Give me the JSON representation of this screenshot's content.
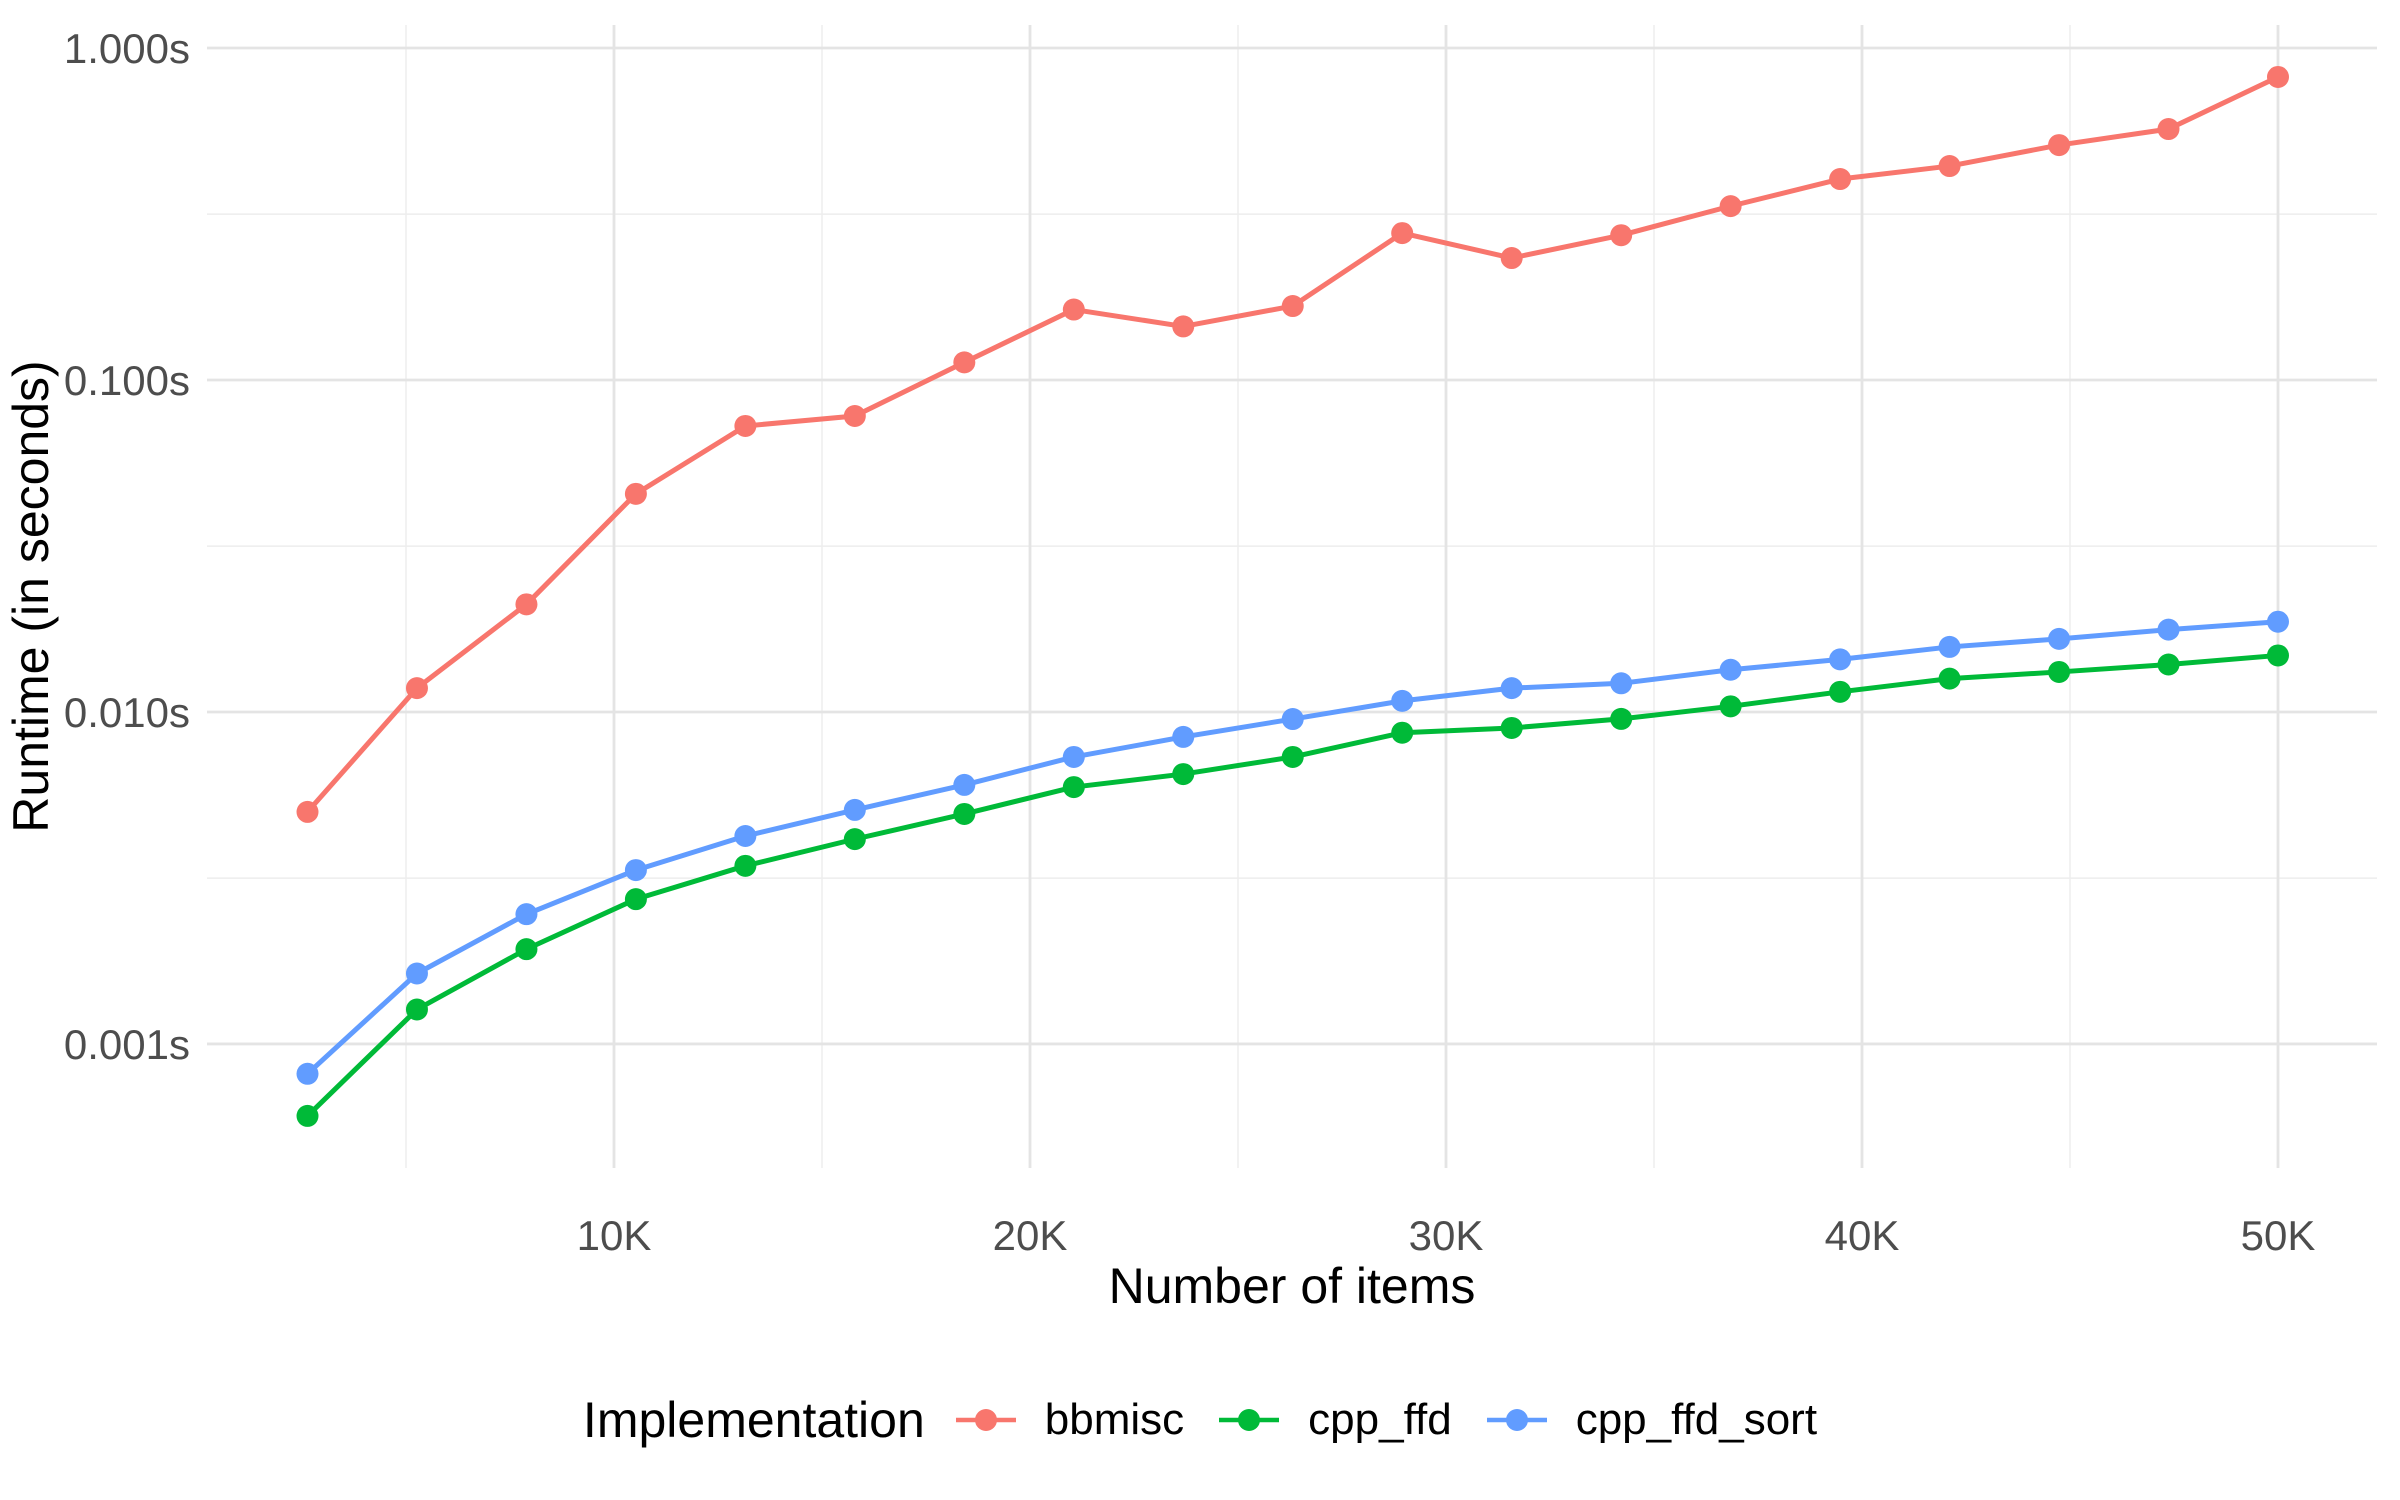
{
  "chart_data": {
    "type": "line",
    "title": "",
    "xlabel": "Number of items",
    "ylabel": "Runtime (in seconds)",
    "legend_title": "Implementation",
    "legend_position": "bottom",
    "x_scale": "linear",
    "y_scale": "log10",
    "grid": true,
    "xlim": [
      216,
      52380
    ],
    "ylim": [
      0.000423,
      1.173
    ],
    "x_ticks": [
      {
        "value": 10000,
        "label": "10K"
      },
      {
        "value": 20000,
        "label": "20K"
      },
      {
        "value": 30000,
        "label": "30K"
      },
      {
        "value": 40000,
        "label": "40K"
      },
      {
        "value": 50000,
        "label": "50K"
      }
    ],
    "x_minor_ticks": [
      5000,
      15000,
      25000,
      35000,
      45000
    ],
    "y_ticks": [
      {
        "value": 1.0,
        "label": "1.000s"
      },
      {
        "value": 0.1,
        "label": "0.100s"
      },
      {
        "value": 0.01,
        "label": "0.010s"
      },
      {
        "value": 0.001,
        "label": "0.001s"
      }
    ],
    "y_minor_ticks": [
      0.316,
      0.0316,
      0.00316
    ],
    "x": [
      2632,
      5263,
      7895,
      10526,
      13158,
      15789,
      18421,
      21053,
      23684,
      26316,
      28947,
      31579,
      34211,
      36842,
      39474,
      42105,
      44737,
      47368,
      50000
    ],
    "series": [
      {
        "name": "bbmisc",
        "color": "#F8766D",
        "values": [
          0.005,
          0.0118,
          0.0211,
          0.0454,
          0.0727,
          0.0779,
          0.113,
          0.163,
          0.145,
          0.167,
          0.277,
          0.233,
          0.273,
          0.334,
          0.403,
          0.441,
          0.51,
          0.57,
          0.818
        ]
      },
      {
        "name": "cpp_ffd",
        "color": "#00BA38",
        "values": [
          0.000607,
          0.00127,
          0.00193,
          0.00273,
          0.00344,
          0.00414,
          0.00493,
          0.00594,
          0.0065,
          0.00732,
          0.00866,
          0.00895,
          0.00953,
          0.0104,
          0.0115,
          0.0126,
          0.0132,
          0.0139,
          0.0148
        ]
      },
      {
        "name": "cpp_ffd_sort",
        "color": "#619CFF",
        "values": [
          0.000813,
          0.00163,
          0.00246,
          0.00334,
          0.00423,
          0.00507,
          0.00603,
          0.00732,
          0.00841,
          0.00952,
          0.0108,
          0.0118,
          0.0122,
          0.0134,
          0.0144,
          0.0157,
          0.0166,
          0.0177,
          0.0187
        ]
      }
    ]
  }
}
